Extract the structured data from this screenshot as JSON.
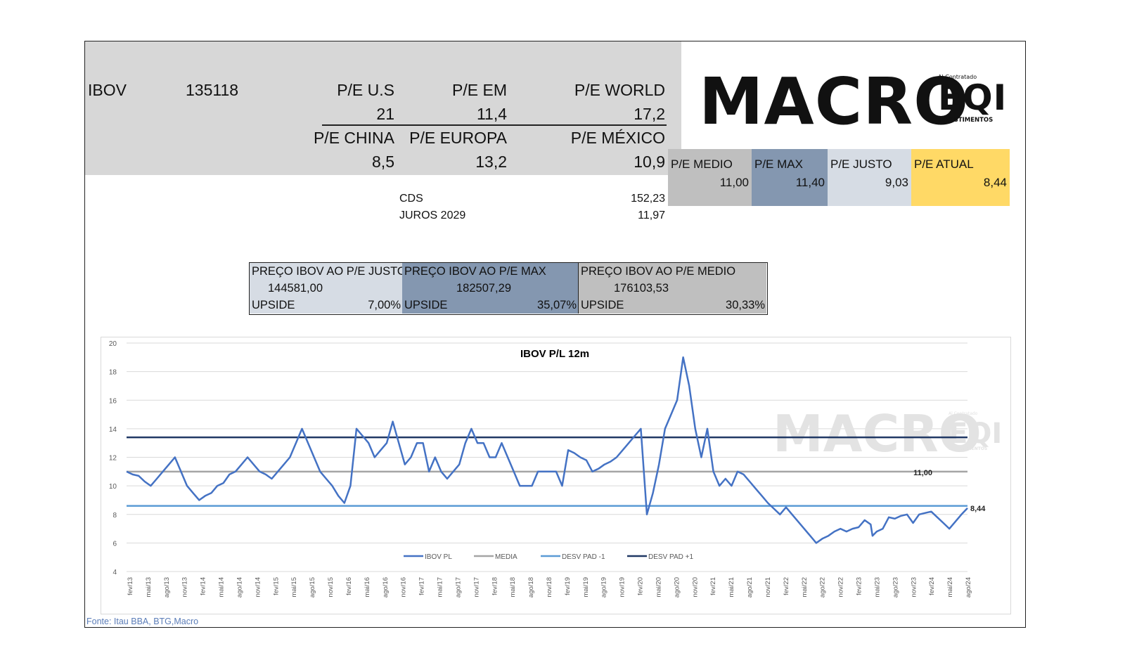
{
  "header": {
    "ibov_label": "IBOV",
    "ibov_value": "135118",
    "pe_us_label": "P/E U.S",
    "pe_us_value": "21",
    "pe_em_label": "P/E EM",
    "pe_em_value": "11,4",
    "pe_world_label": "P/E WORLD",
    "pe_world_value": "17,2",
    "pe_china_label": "P/E CHINA",
    "pe_china_value": "8,5",
    "pe_europa_label": "P/E EUROPA",
    "pe_europa_value": "13,2",
    "pe_mexico_label": "P/E MÉXICO",
    "pe_mexico_value": "10,9"
  },
  "indicators": {
    "cds_label": "CDS",
    "cds_value": "152,23",
    "juros_label": "JUROS 2029",
    "juros_value": "11,97"
  },
  "pe_boxes": [
    {
      "label": "P/E MEDIO",
      "value": "11,00",
      "color": "#bfbfbf"
    },
    {
      "label": "P/E MAX",
      "value": "11,40",
      "color": "#8497b0"
    },
    {
      "label": "P/E JUSTO",
      "value": "9,03",
      "color": "#d6dce4"
    },
    {
      "label": "P/E ATUAL",
      "value": "8,44",
      "color": "#ffd966"
    }
  ],
  "prices": [
    {
      "title": "PREÇO IBOV AO P/E JUSTO",
      "value": "144581,00",
      "upside_label": "UPSIDE",
      "upside": "7,00%",
      "color": "#d6dce4"
    },
    {
      "title": "PREÇO IBOV AO P/E MAX",
      "value": "182507,29",
      "upside_label": "UPSIDE",
      "upside": "35,07%",
      "color": "#8497b0"
    },
    {
      "title": "PREÇO IBOV AO P/E MEDIO",
      "value": "176103,53",
      "upside_label": "UPSIDE",
      "upside": "30,33%",
      "color": "#bfbfbf"
    }
  ],
  "logo": {
    "main": "MACRO",
    "eqi_top": "Al Contratado",
    "eqi": "EQI",
    "eqi_bottom": "INVESTIMENTOS"
  },
  "source": "Fonte: Itau BBA, BTG,Macro",
  "chart_data": {
    "type": "line",
    "title": "IBOV P/L 12m",
    "ylim": [
      4,
      20
    ],
    "yticks": [
      4,
      6,
      8,
      10,
      12,
      14,
      16,
      18,
      20
    ],
    "grid": true,
    "legend_position": "bottom",
    "x_labels": [
      "fev/13",
      "mai/13",
      "ago/13",
      "nov/13",
      "fev/14",
      "mai/14",
      "ago/14",
      "nov/14",
      "fev/15",
      "mai/15",
      "ago/15",
      "nov/15",
      "fev/16",
      "mai/16",
      "ago/16",
      "nov/16",
      "fev/17",
      "mai/17",
      "ago/17",
      "nov/17",
      "fev/18",
      "mai/18",
      "ago/18",
      "nov/18",
      "fev/19",
      "mai/19",
      "ago/19",
      "nov/19",
      "fev/20",
      "mai/20",
      "ago/20",
      "nov/20",
      "fev/21",
      "mai/21",
      "ago/21",
      "nov/21",
      "fev/22",
      "mai/22",
      "ago/22",
      "nov/22",
      "fev/23",
      "mai/23",
      "ago/23",
      "nov/23",
      "fev/24",
      "mai/24",
      "ago/24"
    ],
    "series": [
      {
        "name": "IBOV PL",
        "color": "#4472c4",
        "points": [
          [
            0,
            11
          ],
          [
            1,
            10.8
          ],
          [
            2,
            10.7
          ],
          [
            3,
            10.3
          ],
          [
            4,
            10
          ],
          [
            5,
            10.5
          ],
          [
            6,
            11
          ],
          [
            7,
            11.5
          ],
          [
            8,
            12
          ],
          [
            9,
            11
          ],
          [
            10,
            10
          ],
          [
            11,
            9.5
          ],
          [
            12,
            9
          ],
          [
            13,
            9.3
          ],
          [
            14,
            9.5
          ],
          [
            15,
            10
          ],
          [
            16,
            10.2
          ],
          [
            17,
            10.8
          ],
          [
            18,
            11
          ],
          [
            19,
            11.5
          ],
          [
            20,
            12
          ],
          [
            21,
            11.5
          ],
          [
            22,
            11
          ],
          [
            23,
            10.8
          ],
          [
            24,
            10.5
          ],
          [
            25,
            11
          ],
          [
            26,
            11.5
          ],
          [
            27,
            12
          ],
          [
            28,
            13
          ],
          [
            29,
            14
          ],
          [
            30,
            13
          ],
          [
            31,
            12
          ],
          [
            32,
            11
          ],
          [
            33,
            10.5
          ],
          [
            34,
            10
          ],
          [
            35,
            9.3
          ],
          [
            36,
            8.8
          ],
          [
            37,
            10
          ],
          [
            38,
            14
          ],
          [
            39,
            13.5
          ],
          [
            40,
            13
          ],
          [
            41,
            12
          ],
          [
            42,
            12.5
          ],
          [
            43,
            13
          ],
          [
            44,
            14.5
          ],
          [
            45,
            13
          ],
          [
            46,
            11.5
          ],
          [
            47,
            12
          ],
          [
            48,
            13
          ],
          [
            49,
            13
          ],
          [
            50,
            11
          ],
          [
            51,
            12
          ],
          [
            52,
            11
          ],
          [
            53,
            10.5
          ],
          [
            54,
            11
          ],
          [
            55,
            11.5
          ],
          [
            56,
            13
          ],
          [
            57,
            14
          ],
          [
            58,
            13
          ],
          [
            59,
            13
          ],
          [
            60,
            12
          ],
          [
            61,
            12
          ],
          [
            62,
            13
          ],
          [
            63,
            12
          ],
          [
            64,
            11
          ],
          [
            65,
            10
          ],
          [
            66,
            10
          ],
          [
            67,
            10
          ],
          [
            68,
            11
          ],
          [
            69,
            11
          ],
          [
            70,
            11
          ],
          [
            71,
            11
          ],
          [
            72,
            10
          ],
          [
            73,
            12.5
          ],
          [
            74,
            12.3
          ],
          [
            75,
            12
          ],
          [
            76,
            11.8
          ],
          [
            77,
            11
          ],
          [
            78,
            11.2
          ],
          [
            79,
            11.5
          ],
          [
            80,
            11.7
          ],
          [
            81,
            12
          ],
          [
            82,
            12.5
          ],
          [
            83,
            13
          ],
          [
            84,
            13.5
          ],
          [
            85,
            14
          ],
          [
            86,
            8
          ],
          [
            87,
            9.5
          ],
          [
            88,
            11.5
          ],
          [
            89,
            14
          ],
          [
            90,
            15
          ],
          [
            91,
            16
          ],
          [
            92,
            19
          ],
          [
            93,
            17
          ],
          [
            94,
            14
          ],
          [
            95,
            12
          ],
          [
            96,
            14
          ],
          [
            97,
            11
          ],
          [
            98,
            10
          ],
          [
            99,
            10.5
          ],
          [
            100,
            10
          ],
          [
            101,
            11
          ],
          [
            102,
            10.8
          ],
          [
            103,
            10.3
          ],
          [
            104,
            9.8
          ],
          [
            105,
            9.3
          ],
          [
            106,
            8.8
          ],
          [
            107,
            8.4
          ],
          [
            108,
            8
          ],
          [
            109,
            8.5
          ],
          [
            110,
            8
          ],
          [
            111,
            7.5
          ],
          [
            112,
            7
          ],
          [
            113,
            6.5
          ],
          [
            114,
            6
          ],
          [
            115,
            6.3
          ],
          [
            116,
            6.5
          ],
          [
            117,
            6.8
          ],
          [
            118,
            7
          ],
          [
            119,
            6.8
          ],
          [
            120,
            7
          ],
          [
            121,
            7.1
          ],
          [
            122,
            7.6
          ],
          [
            123,
            7.3
          ],
          [
            123.3,
            6.5
          ],
          [
            124,
            6.8
          ],
          [
            125,
            7
          ],
          [
            126,
            7.8
          ],
          [
            127,
            7.7
          ],
          [
            128,
            7.9
          ],
          [
            129,
            8
          ],
          [
            130,
            7.4
          ],
          [
            131,
            8
          ],
          [
            132,
            8.1
          ],
          [
            133,
            8.2
          ],
          [
            134,
            7.8
          ],
          [
            135,
            7.4
          ],
          [
            136,
            7
          ],
          [
            137,
            7.5
          ],
          [
            138,
            8
          ],
          [
            139,
            8.44
          ]
        ]
      },
      {
        "name": "MEDIA",
        "color": "#a5a5a5",
        "values": [
          11.0,
          11.0
        ]
      },
      {
        "name": "DESV PAD -1",
        "color": "#5b9bd5",
        "values": [
          8.6,
          8.6
        ]
      },
      {
        "name": "DESV PAD +1",
        "color": "#203864",
        "values": [
          13.4,
          13.4
        ]
      }
    ],
    "x_range": [
      0,
      139
    ],
    "annotations": [
      {
        "text": "11,00",
        "series": "MEDIA"
      },
      {
        "text": "8,44",
        "series": "IBOV PL"
      }
    ],
    "watermark": {
      "main": "MACRO",
      "eqi": "EQI",
      "eqi_top": "Al Contratado",
      "eqi_bottom": "INVESTIMENTOS"
    }
  }
}
